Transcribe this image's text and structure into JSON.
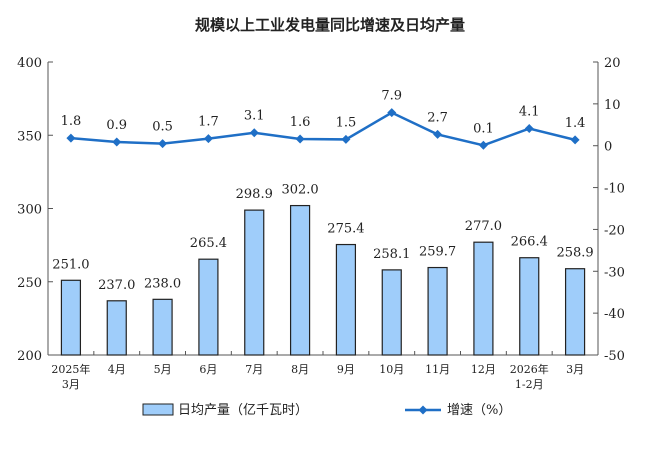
{
  "chart_data": {
    "type": "bar+line",
    "title": "规模以上工业发电量同比增速及日均产量",
    "categories": [
      [
        "2025年",
        "3月"
      ],
      [
        "4月"
      ],
      [
        "5月"
      ],
      [
        "6月"
      ],
      [
        "7月"
      ],
      [
        "8月"
      ],
      [
        "9月"
      ],
      [
        "10月"
      ],
      [
        "11月"
      ],
      [
        "12月"
      ],
      [
        "2026年",
        "1-2月"
      ],
      [
        "3月"
      ]
    ],
    "series": [
      {
        "name": "日均产量（亿千瓦时）",
        "type": "bar",
        "axis": "left",
        "color": "#9fcdfa",
        "values": [
          251.0,
          237.0,
          238.0,
          265.4,
          298.9,
          302.0,
          275.4,
          258.1,
          259.7,
          277.0,
          266.4,
          258.9
        ]
      },
      {
        "name": "增速（%）",
        "type": "line",
        "axis": "right",
        "color": "#1f6fc6",
        "values": [
          1.8,
          0.9,
          0.5,
          1.7,
          3.1,
          1.6,
          1.5,
          7.9,
          2.7,
          0.1,
          4.1,
          1.4
        ]
      }
    ],
    "ylim_left": [
      200,
      400
    ],
    "yticks_left": [
      200,
      250,
      300,
      350,
      400
    ],
    "ylim_right": [
      -50,
      20
    ],
    "yticks_right": [
      -50,
      -40,
      -30,
      -20,
      -10,
      0,
      10,
      20
    ],
    "legend": "bottom",
    "grid": false
  }
}
